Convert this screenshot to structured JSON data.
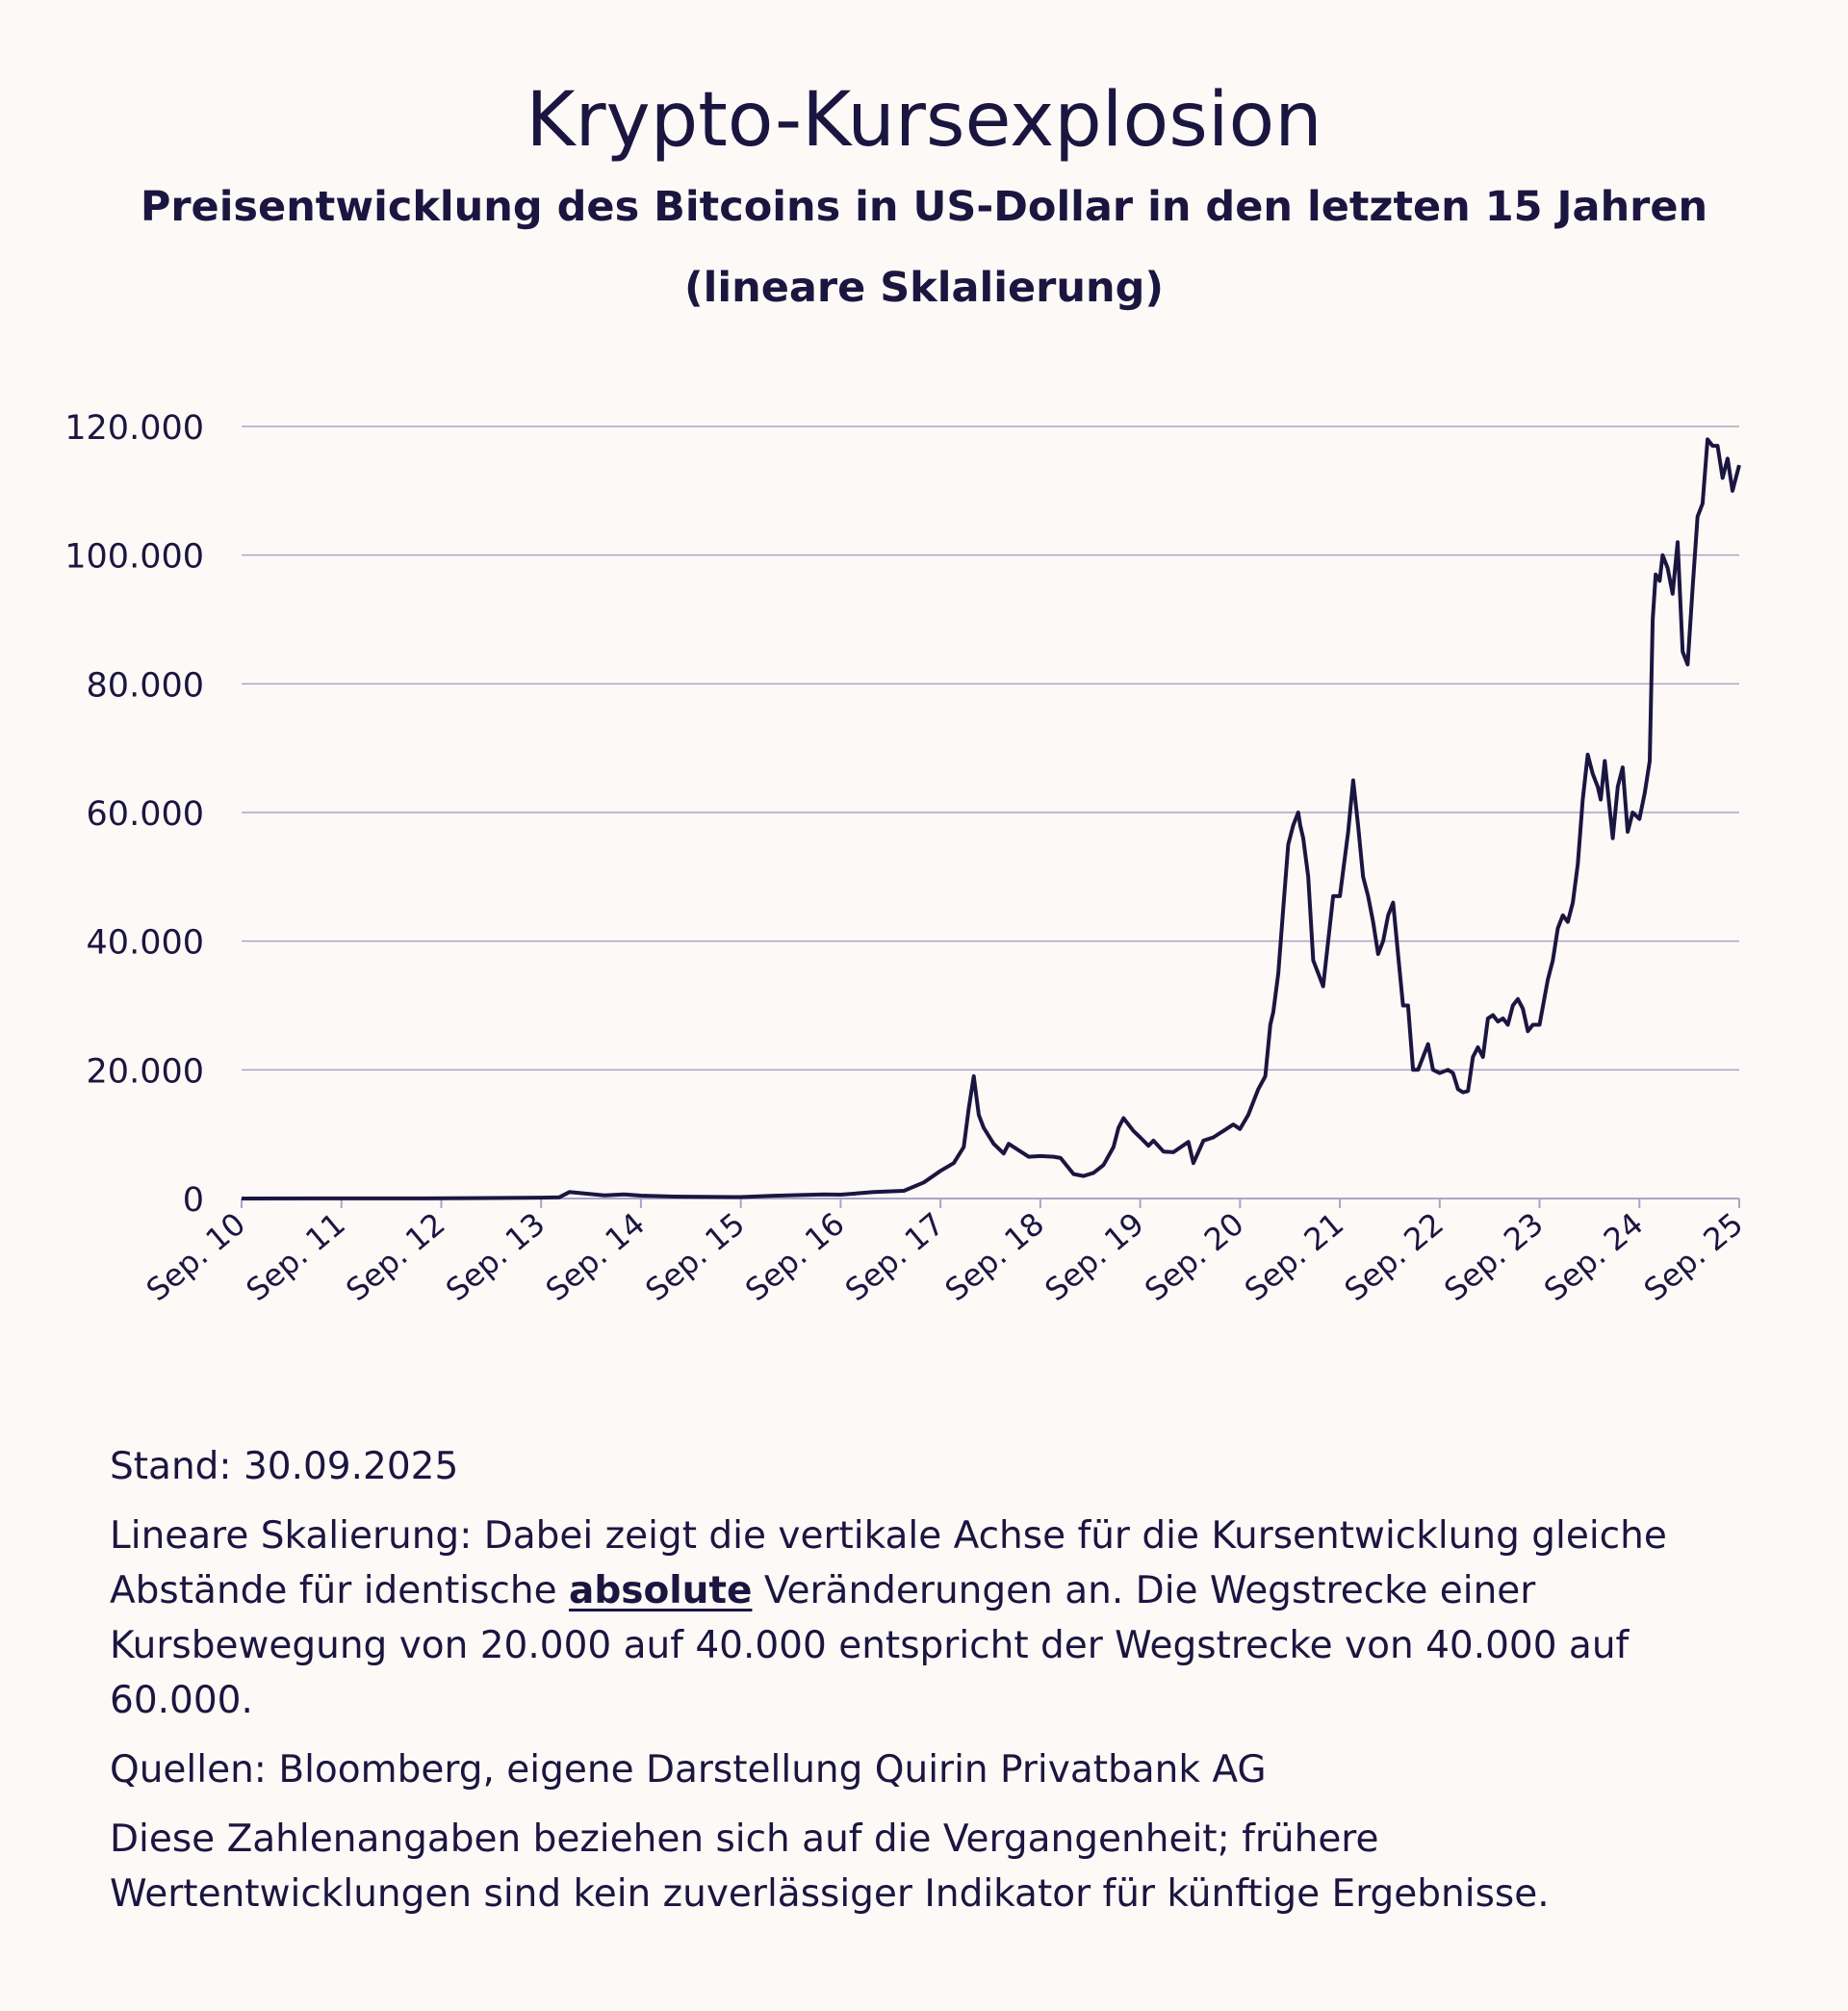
{
  "colors": {
    "background": "#fcf9f7",
    "text": "#1b1640",
    "line": "#1b1640",
    "grid": "#a9a5c7"
  },
  "title": "Krypto-Kursexplosion",
  "subtitle": "Preisentwicklung des Bitcoins in US-Dollar in den letzten 15 Jahren",
  "subtitle2": "(lineare Sklalierung)",
  "footer": {
    "stand": "Stand: 30.09.2025",
    "desc_pre": "Lineare Skalierung: Dabei zeigt die vertikale Achse für die Kursentwicklung gleiche Abstände für identische ",
    "desc_bold": "absolute",
    "desc_post": " Veränderungen an. Die Wegstrecke einer Kursbewegung von 20.000 auf 40.000 entspricht der Wegstrecke von 40.000 auf 60.000.",
    "sources": "Quellen: Bloomberg, eigene Darstellung Quirin Privatbank AG",
    "disclaimer": "Diese Zahlenangaben beziehen sich auf die Vergangenheit; frühere Wertentwicklungen sind kein zuverlässiger Indikator für künftige Ergebnisse."
  },
  "chart_data": {
    "type": "line",
    "title": "Krypto-Kursexplosion",
    "xlabel": "",
    "ylabel": "",
    "ylim": [
      0,
      120000
    ],
    "yticks": [
      0,
      20000,
      40000,
      60000,
      80000,
      100000,
      120000
    ],
    "ytick_labels": [
      "0",
      "20.000",
      "40.000",
      "60.000",
      "80.000",
      "100.000",
      "120.000"
    ],
    "xlim": [
      2010.667,
      2025.667
    ],
    "xticks": [
      2010.667,
      2011.667,
      2012.667,
      2013.667,
      2014.667,
      2015.667,
      2016.667,
      2017.667,
      2018.667,
      2019.667,
      2020.667,
      2021.667,
      2022.667,
      2023.667,
      2024.667,
      2025.667
    ],
    "xtick_labels": [
      "Sep. 10",
      "Sep. 11",
      "Sep. 12",
      "Sep. 13",
      "Sep. 14",
      "Sep. 15",
      "Sep. 16",
      "Sep. 17",
      "Sep. 18",
      "Sep. 19",
      "Sep. 20",
      "Sep. 21",
      "Sep. 22",
      "Sep. 23",
      "Sep. 24",
      "Sep. 25"
    ],
    "grid": true,
    "legend": "none",
    "series": [
      {
        "x": [
          2010.667,
          2011.5,
          2012.5,
          2013.667,
          2013.85,
          2013.95,
          2014.1,
          2014.3,
          2014.5,
          2014.667,
          2015.0,
          2015.667,
          2016.0,
          2016.5,
          2016.667,
          2017.0,
          2017.3,
          2017.5,
          2017.667,
          2017.8,
          2017.9,
          2017.95,
          2018.0,
          2018.05,
          2018.1,
          2018.2,
          2018.3,
          2018.35,
          2018.45,
          2018.55,
          2018.667,
          2018.8,
          2018.87,
          2019.0,
          2019.1,
          2019.2,
          2019.3,
          2019.4,
          2019.45,
          2019.5,
          2019.6,
          2019.667,
          2019.75,
          2019.8,
          2019.9,
          2020.0,
          2020.15,
          2020.2,
          2020.3,
          2020.4,
          2020.5,
          2020.6,
          2020.667,
          2020.75,
          2020.85,
          2020.92,
          2020.97,
          2021.0,
          2021.05,
          2021.1,
          2021.15,
          2021.2,
          2021.25,
          2021.27,
          2021.3,
          2021.35,
          2021.4,
          2021.45,
          2021.5,
          2021.55,
          2021.6,
          2021.667,
          2021.75,
          2021.8,
          2021.85,
          2021.9,
          2021.95,
          2022.0,
          2022.05,
          2022.1,
          2022.15,
          2022.2,
          2022.25,
          2022.3,
          2022.35,
          2022.4,
          2022.45,
          2022.5,
          2022.55,
          2022.6,
          2022.667,
          2022.75,
          2022.8,
          2022.85,
          2022.9,
          2022.95,
          2023.0,
          2023.05,
          2023.1,
          2023.15,
          2023.2,
          2023.25,
          2023.3,
          2023.35,
          2023.4,
          2023.45,
          2023.5,
          2023.55,
          2023.6,
          2023.667,
          2023.75,
          2023.8,
          2023.85,
          2023.9,
          2023.95,
          2024.0,
          2024.05,
          2024.1,
          2024.15,
          2024.2,
          2024.25,
          2024.28,
          2024.32,
          2024.36,
          2024.4,
          2024.45,
          2024.5,
          2024.55,
          2024.6,
          2024.667,
          2024.72,
          2024.77,
          2024.8,
          2024.83,
          2024.87,
          2024.9,
          2024.95,
          2025.0,
          2025.05,
          2025.1,
          2025.15,
          2025.2,
          2025.25,
          2025.3,
          2025.35,
          2025.4,
          2025.45,
          2025.5,
          2025.55,
          2025.6,
          2025.667
        ],
        "values": [
          0.06,
          10,
          11,
          130,
          200,
          1000,
          800,
          500,
          630,
          450,
          300,
          230,
          430,
          650,
          600,
          1000,
          1200,
          2500,
          4300,
          5500,
          8000,
          14000,
          19000,
          13000,
          11000,
          8500,
          7000,
          8500,
          7500,
          6500,
          6600,
          6500,
          6300,
          3800,
          3500,
          4000,
          5200,
          8000,
          11000,
          12500,
          10500,
          9500,
          8200,
          9000,
          7300,
          7200,
          8800,
          5500,
          9000,
          9500,
          10500,
          11500,
          10800,
          13000,
          17000,
          19000,
          27000,
          29000,
          35000,
          45000,
          55000,
          58000,
          60000,
          58000,
          56000,
          50000,
          37000,
          35000,
          33000,
          40000,
          47000,
          47000,
          57000,
          65000,
          58000,
          50000,
          47000,
          43000,
          38000,
          40000,
          44000,
          46000,
          38000,
          30000,
          30000,
          20000,
          20000,
          22000,
          24000,
          20000,
          19500,
          20000,
          19500,
          17000,
          16500,
          16700,
          22000,
          23500,
          22000,
          28000,
          28500,
          27500,
          28000,
          27000,
          30000,
          31000,
          29500,
          26000,
          27000,
          27000,
          34000,
          37000,
          42000,
          44000,
          43000,
          46000,
          52000,
          62000,
          69000,
          66000,
          64000,
          62000,
          68000,
          62000,
          56000,
          64000,
          67000,
          57000,
          60000,
          59000,
          63000,
          68000,
          90000,
          97000,
          96000,
          100000,
          98000,
          94000,
          102000,
          85000,
          83000,
          95000,
          106000,
          108000,
          118000,
          117000,
          117000,
          112000,
          115000,
          110000,
          114000
        ]
      }
    ]
  }
}
